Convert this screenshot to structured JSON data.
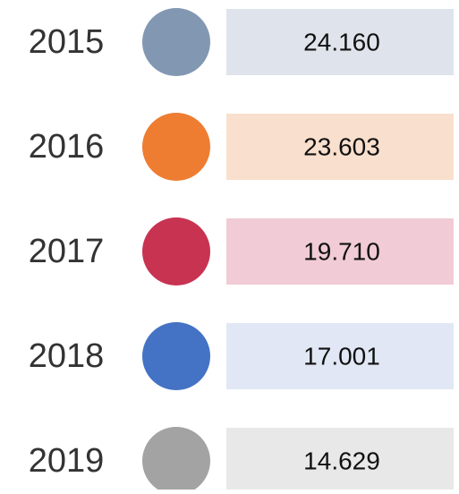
{
  "rows": [
    {
      "year": "2015",
      "value": "24.160",
      "color": "#8298b2",
      "box": "#dfe3eb"
    },
    {
      "year": "2016",
      "value": "23.603",
      "color": "#ee7d32",
      "box": "#f9dfcd"
    },
    {
      "year": "2017",
      "value": "19.710",
      "color": "#c83352",
      "box": "#f1cbd5"
    },
    {
      "year": "2018",
      "value": "17.001",
      "color": "#4472c4",
      "box": "#e1e7f4"
    },
    {
      "year": "2019",
      "value": "14.629",
      "color": "#a3a3a3",
      "box": "#e8e8e8"
    }
  ]
}
